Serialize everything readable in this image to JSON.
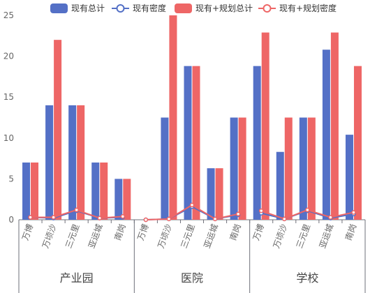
{
  "chart_data": {
    "type": "bar",
    "groups": [
      "产业园",
      "医院",
      "学校"
    ],
    "categories": [
      "万博",
      "万顷沙",
      "三元里",
      "亚运城",
      "南岗"
    ],
    "ylim": [
      0,
      25
    ],
    "yticks": [
      0,
      5,
      10,
      15,
      20,
      25
    ],
    "grid": false,
    "legend_position": "top",
    "series": [
      {
        "name": "现有总计",
        "kind": "bar",
        "color": "#5470c6",
        "values": [
          [
            7,
            14,
            14,
            7,
            5
          ],
          [
            0,
            12.5,
            18.8,
            6.3,
            12.5
          ],
          [
            18.8,
            8.3,
            12.5,
            20.8,
            10.4
          ]
        ]
      },
      {
        "name": "现有密度",
        "kind": "line",
        "color": "#5470c6",
        "values": [
          [
            0.3,
            0.2,
            1.1,
            0.2,
            0.3
          ],
          [
            0,
            0.1,
            1.6,
            0.1,
            0.6
          ],
          [
            0.8,
            0.1,
            1.1,
            0.2,
            0.7
          ]
        ]
      },
      {
        "name": "现有+规划总计",
        "kind": "bar",
        "color": "#ee6666",
        "values": [
          [
            7,
            22,
            14,
            7,
            5
          ],
          [
            0,
            25,
            18.8,
            6.3,
            12.5
          ],
          [
            22.9,
            12.5,
            12.5,
            22.9,
            18.8
          ]
        ]
      },
      {
        "name": "现有+规划密度",
        "kind": "line",
        "color": "#ee6666",
        "values": [
          [
            0.3,
            0.3,
            1.2,
            0.2,
            0.4
          ],
          [
            0,
            0.1,
            1.8,
            0.1,
            0.7
          ],
          [
            1.1,
            0.1,
            1.2,
            0.3,
            0.9
          ]
        ]
      }
    ]
  }
}
